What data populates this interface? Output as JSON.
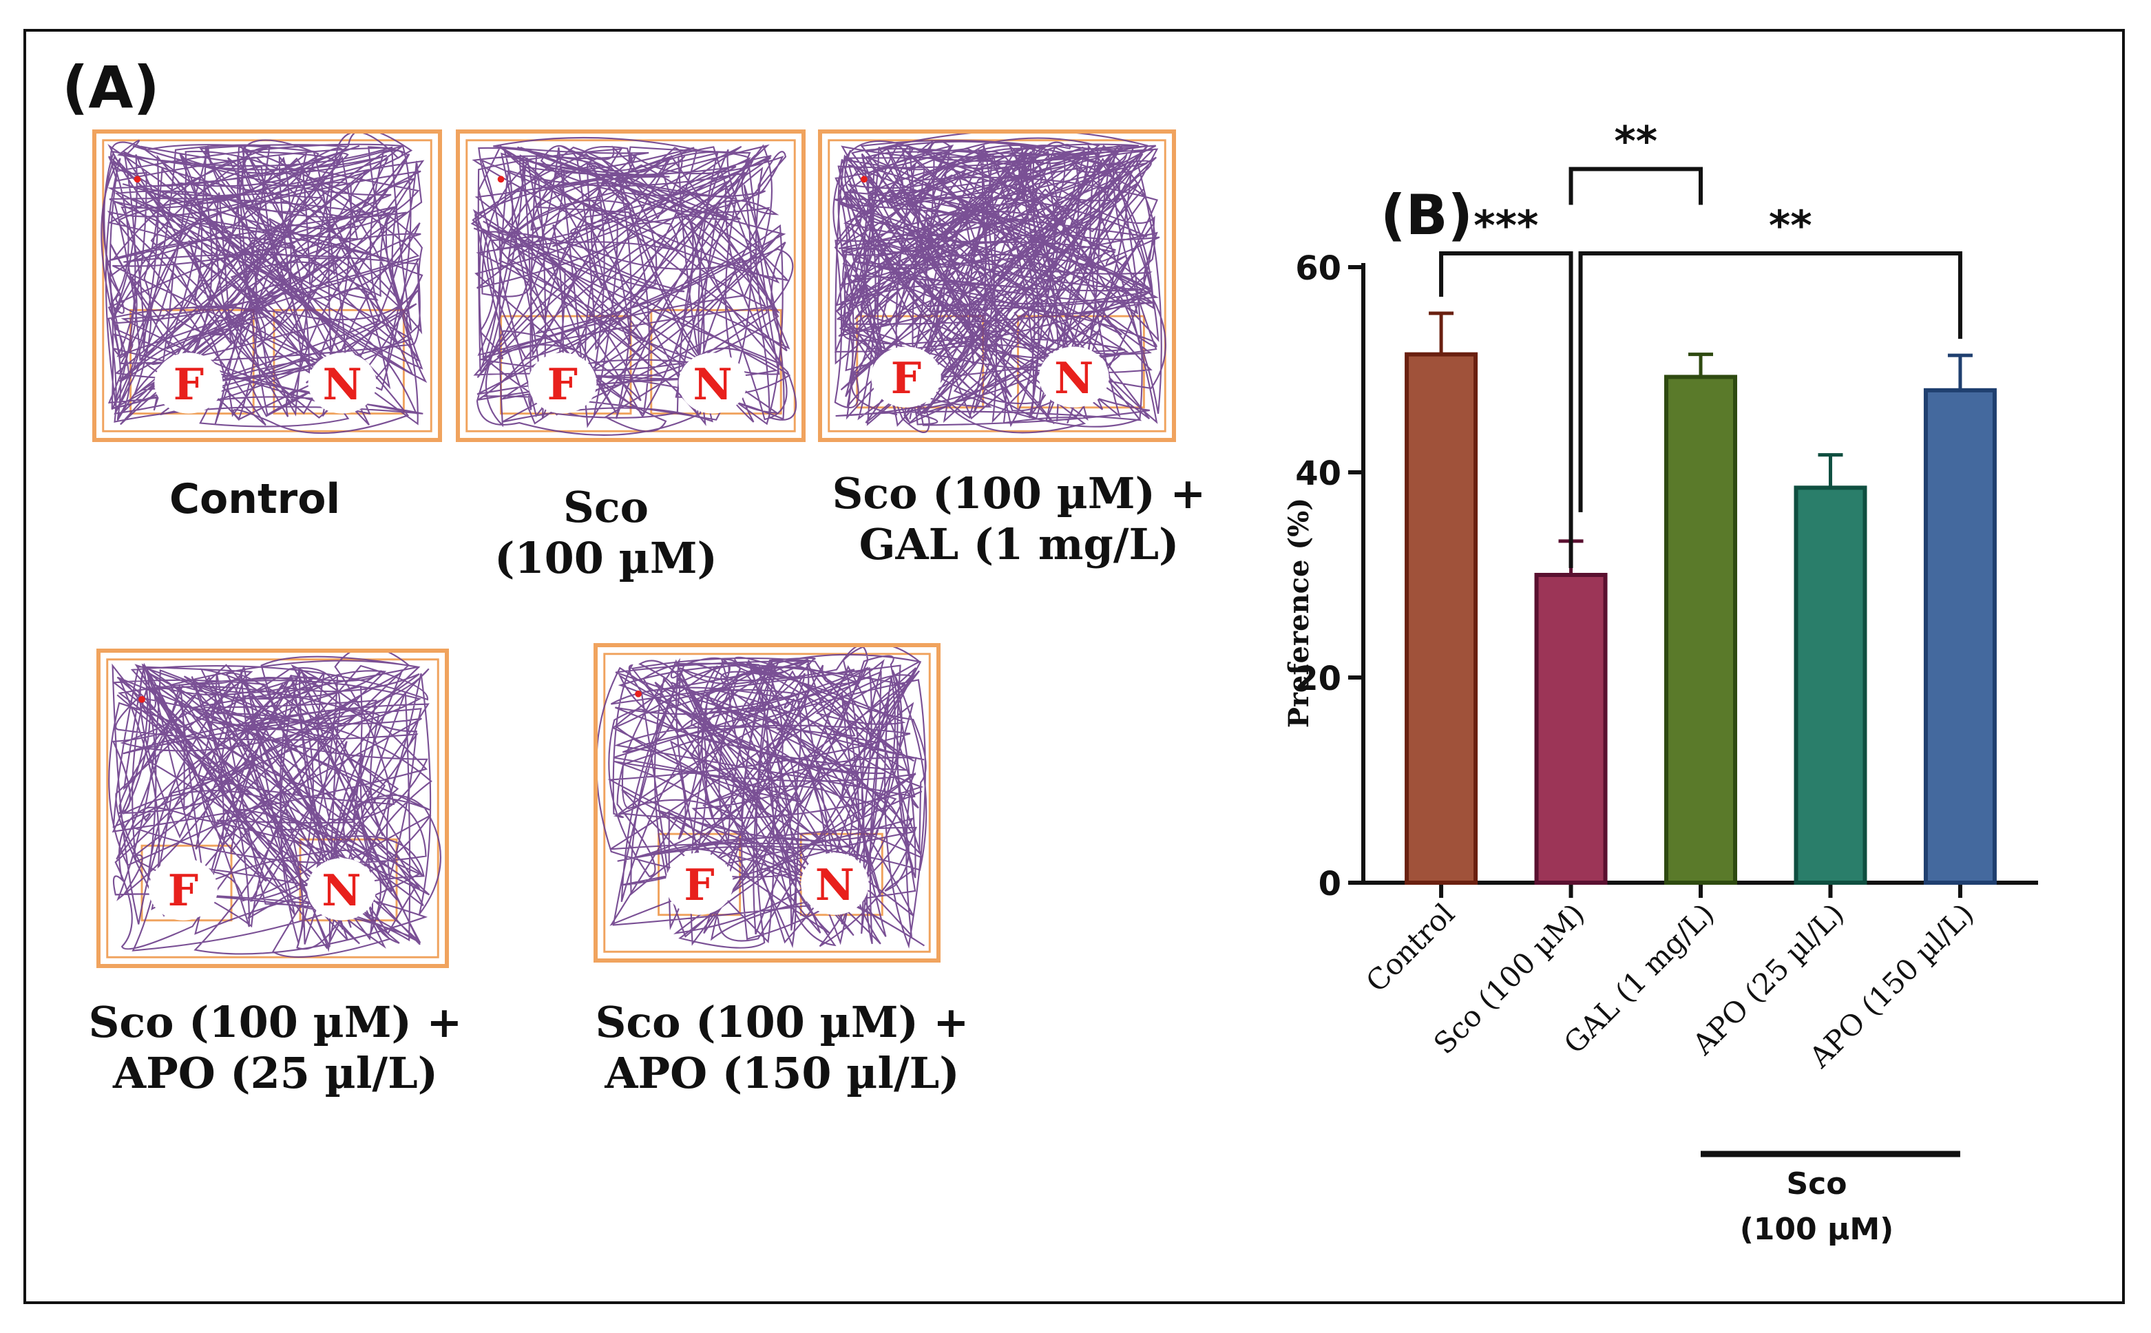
{
  "panel_a": {
    "label": "(A)",
    "zone_f": "F",
    "zone_n": "N",
    "colors": {
      "trace": "#6b3d8a",
      "border": "#f0a35e",
      "zone": "#e8201c"
    },
    "arenas": [
      {
        "name": "control",
        "caption_line1": "Control",
        "caption_line2": ""
      },
      {
        "name": "sco",
        "caption_line1": "Sco",
        "caption_line2": "(100 µM)"
      },
      {
        "name": "sco-gal",
        "caption_line1": "Sco (100 µM) +",
        "caption_line2": "GAL (1 mg/L)"
      },
      {
        "name": "sco-apo25",
        "caption_line1": "Sco (100 µM) +",
        "caption_line2": "APO (25 µl/L)"
      },
      {
        "name": "sco-apo150",
        "caption_line1": "Sco (100 µM) +",
        "caption_line2": "APO (150 µl/L)"
      }
    ]
  },
  "chart_data": {
    "type": "bar",
    "panel_label": "(B)",
    "title": "",
    "xlabel": "",
    "ylabel": "Preference (%)",
    "ylim": [
      0,
      60
    ],
    "yticks": [
      0,
      20,
      40,
      60
    ],
    "categories": [
      "Control",
      "Sco (100 µM)",
      "GAL (1 mg/L)",
      "APO (25 µl/L)",
      "APO (150 µl/L)"
    ],
    "values": [
      51.5,
      30,
      49.3,
      38.5,
      48
    ],
    "errors": [
      4,
      3.3,
      2.2,
      3.2,
      3.4
    ],
    "colors": [
      "#a0523a",
      "#9c3557",
      "#5a7a2a",
      "#2a7e6a",
      "#44699e"
    ],
    "edge_colors": [
      "#6a2010",
      "#5a1030",
      "#2e4a10",
      "#0f4f40",
      "#1f3f6f"
    ],
    "group_bracket": {
      "label_line1": "Sco",
      "label_line2": "(100 µM)",
      "from": 2,
      "to": 4
    },
    "significance": [
      {
        "from": 0,
        "to": 1,
        "label": "***"
      },
      {
        "from": 1,
        "to": 2,
        "label": "**"
      },
      {
        "from": 1,
        "to": 4,
        "label": "**"
      }
    ]
  }
}
